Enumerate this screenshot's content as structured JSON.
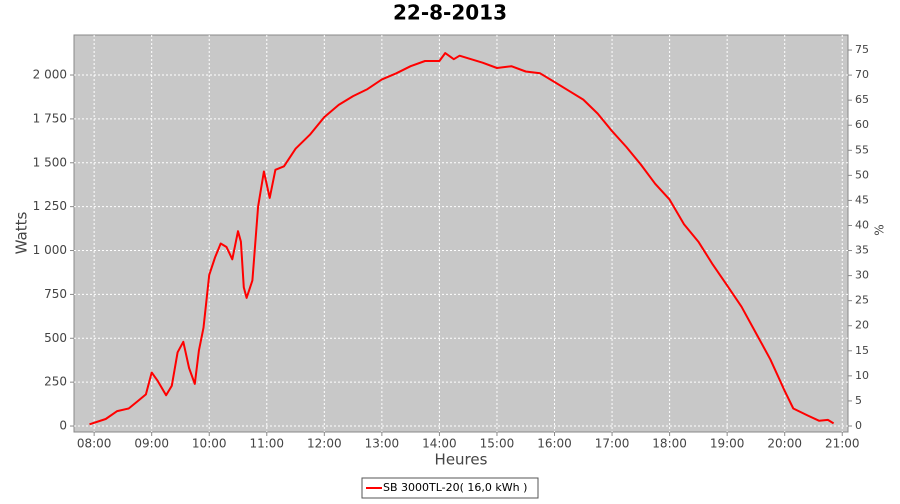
{
  "chart_data": {
    "type": "line",
    "title": "22-8-2013",
    "x_label": "Heures",
    "y_label": "Watts",
    "y2_label": "%",
    "x": [
      7.92,
      8.2,
      8.4,
      8.6,
      8.75,
      8.9,
      9.0,
      9.1,
      9.25,
      9.35,
      9.45,
      9.55,
      9.65,
      9.75,
      9.82,
      9.9,
      10.0,
      10.1,
      10.2,
      10.3,
      10.4,
      10.5,
      10.55,
      10.6,
      10.65,
      10.75,
      10.85,
      10.95,
      11.05,
      11.15,
      11.3,
      11.5,
      11.75,
      12.0,
      12.25,
      12.5,
      12.75,
      13.0,
      13.25,
      13.5,
      13.75,
      14.0,
      14.1,
      14.25,
      14.35,
      14.5,
      14.75,
      15.0,
      15.25,
      15.5,
      15.75,
      16.0,
      16.25,
      16.5,
      16.75,
      17.0,
      17.25,
      17.5,
      17.75,
      18.0,
      18.25,
      18.5,
      18.75,
      19.0,
      19.25,
      19.5,
      19.75,
      20.0,
      20.15,
      20.4,
      20.6,
      20.75,
      20.85
    ],
    "series": [
      {
        "name": "SB 3000TL-20( 16,0 kWh )",
        "color": "#ff0000",
        "values": [
          10,
          40,
          85,
          100,
          140,
          180,
          305,
          260,
          175,
          230,
          420,
          480,
          330,
          240,
          430,
          560,
          860,
          960,
          1040,
          1020,
          950,
          1110,
          1050,
          790,
          730,
          830,
          1250,
          1450,
          1300,
          1460,
          1480,
          1580,
          1660,
          1760,
          1830,
          1880,
          1920,
          1975,
          2010,
          2050,
          2080,
          2080,
          2125,
          2090,
          2110,
          2095,
          2070,
          2040,
          2050,
          2020,
          2010,
          1960,
          1910,
          1860,
          1780,
          1680,
          1590,
          1490,
          1380,
          1290,
          1150,
          1050,
          920,
          800,
          680,
          530,
          380,
          200,
          100,
          60,
          30,
          35,
          15
        ]
      }
    ],
    "xlim": [
      7.65,
      21.1
    ],
    "xticks": [
      {
        "value": 8,
        "label": "08:00"
      },
      {
        "value": 9,
        "label": "09:00"
      },
      {
        "value": 10,
        "label": "10:00"
      },
      {
        "value": 11,
        "label": "11:00"
      },
      {
        "value": 12,
        "label": "12:00"
      },
      {
        "value": 13,
        "label": "13:00"
      },
      {
        "value": 14,
        "label": "14:00"
      },
      {
        "value": 15,
        "label": "15:00"
      },
      {
        "value": 16,
        "label": "16:00"
      },
      {
        "value": 17,
        "label": "17:00"
      },
      {
        "value": 18,
        "label": "18:00"
      },
      {
        "value": 19,
        "label": "19:00"
      },
      {
        "value": 20,
        "label": "20:00"
      },
      {
        "value": 21,
        "label": "21:00"
      }
    ],
    "ylim": [
      -34,
      2228
    ],
    "yticks": [
      0,
      250,
      500,
      750,
      {
        "value": 1000,
        "label": "1 000"
      },
      {
        "value": 1250,
        "label": "1 250"
      },
      {
        "value": 1500,
        "label": "1 500"
      },
      {
        "value": 1750,
        "label": "1 750"
      },
      {
        "value": 2000,
        "label": "2 000"
      }
    ],
    "y2lim": [
      -1.2,
      78
    ],
    "y2ticks": [
      0,
      5,
      10,
      15,
      20,
      25,
      30,
      35,
      40,
      45,
      50,
      55,
      60,
      65,
      70,
      75
    ],
    "grid": true,
    "legend": "bottom"
  }
}
